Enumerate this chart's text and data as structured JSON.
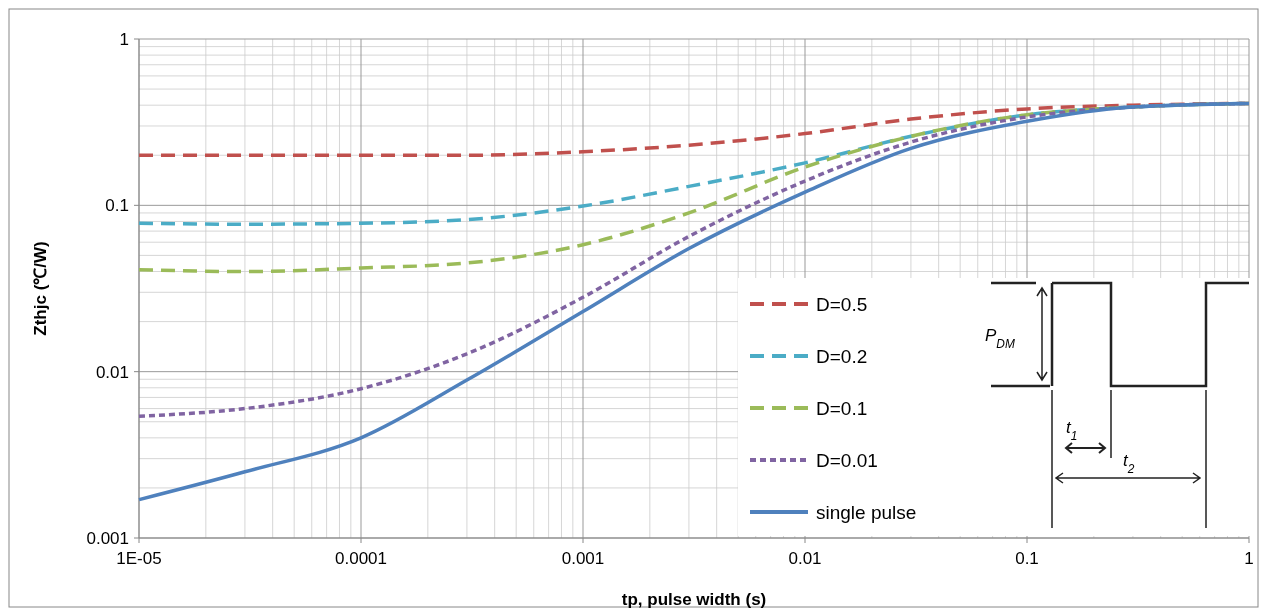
{
  "chart_data": {
    "type": "line",
    "xlabel": "tp, pulse width   (s)",
    "ylabel": "Zthjc  (℃/W)",
    "log": "xy",
    "grid": true,
    "legend": "bottom right",
    "marker": "none",
    "xlim": [
      1e-05,
      1
    ],
    "xticks": [
      {
        "value": 1e-05,
        "label": "1E-05"
      },
      0.0001,
      0.001,
      0.01,
      0.1,
      1
    ],
    "ylim": [
      0.001,
      1
    ],
    "yticks": [
      0.001,
      0.01,
      0.1,
      1
    ],
    "x": [
      1e-05,
      3e-05,
      0.0001,
      0.0003,
      0.001,
      0.003,
      0.01,
      0.03,
      0.1,
      0.3,
      1
    ],
    "series": [
      {
        "name": "D=0.5",
        "color": "#c0504d",
        "line_style": "dashed",
        "values": [
          0.2,
          0.2,
          0.2,
          0.2,
          0.21,
          0.23,
          0.27,
          0.33,
          0.38,
          0.4,
          0.41
        ]
      },
      {
        "name": "D=0.2",
        "color": "#4bacc6",
        "line_style": "dashed",
        "values": [
          0.078,
          0.077,
          0.078,
          0.082,
          0.099,
          0.13,
          0.18,
          0.26,
          0.35,
          0.39,
          0.41
        ]
      },
      {
        "name": "D=0.1",
        "color": "#9bbb59",
        "line_style": "dashed",
        "values": [
          0.041,
          0.04,
          0.042,
          0.045,
          0.058,
          0.09,
          0.17,
          0.26,
          0.35,
          0.39,
          0.41
        ]
      },
      {
        "name": "D=0.01",
        "color": "#8064a2",
        "line_style": "dotted",
        "values": [
          0.0054,
          0.006,
          0.0079,
          0.0128,
          0.028,
          0.065,
          0.14,
          0.24,
          0.34,
          0.39,
          0.41
        ]
      },
      {
        "name": "single pulse",
        "color": "#4f81bd",
        "line_style": "solid",
        "values": [
          0.0017,
          0.0025,
          0.004,
          0.0089,
          0.023,
          0.055,
          0.12,
          0.22,
          0.32,
          0.39,
          0.41
        ]
      }
    ],
    "annotations": [
      "P$_{DM}$",
      "t$_{1}$",
      "t$_{2}$"
    ]
  }
}
